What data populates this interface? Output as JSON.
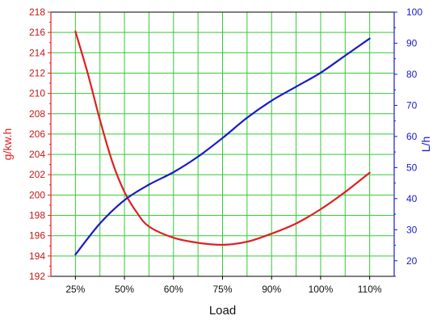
{
  "chart_data": {
    "type": "line",
    "xlabel": "Load",
    "x_tick_labels": [
      "25%",
      "50%",
      "60%",
      "75%",
      "90%",
      "100%",
      "110%"
    ],
    "x": [
      "25%",
      "50%",
      "60%",
      "75%",
      "90%",
      "100%",
      "110%"
    ],
    "left_axis": {
      "label": "g/kw.h",
      "color": "#e02020",
      "ylim": [
        192,
        218
      ],
      "ticks": [
        192,
        194,
        196,
        198,
        200,
        202,
        204,
        206,
        208,
        210,
        212,
        214,
        216,
        218
      ]
    },
    "right_axis": {
      "label": "L/h",
      "color": "#1a1acc",
      "ylim": [
        15,
        100
      ],
      "ticks": [
        20,
        30,
        40,
        50,
        60,
        70,
        80,
        90,
        100
      ]
    },
    "series": [
      {
        "axis": "left",
        "color": "#e02020",
        "points": [
          {
            "x": 0.0,
            "y": 216.1
          },
          {
            "x": 0.25,
            "y": 212.0
          },
          {
            "x": 0.5,
            "y": 207.4
          },
          {
            "x": 0.75,
            "y": 203.3
          },
          {
            "x": 1.0,
            "y": 200.3
          },
          {
            "x": 1.25,
            "y": 198.3
          },
          {
            "x": 1.5,
            "y": 196.9
          },
          {
            "x": 2.0,
            "y": 195.8
          },
          {
            "x": 2.5,
            "y": 195.3
          },
          {
            "x": 3.0,
            "y": 195.1
          },
          {
            "x": 3.5,
            "y": 195.4
          },
          {
            "x": 4.0,
            "y": 196.2
          },
          {
            "x": 4.5,
            "y": 197.2
          },
          {
            "x": 5.0,
            "y": 198.6
          },
          {
            "x": 5.5,
            "y": 200.3
          },
          {
            "x": 6.0,
            "y": 202.2
          }
        ]
      },
      {
        "axis": "right",
        "color": "#1a1acc",
        "points": [
          {
            "x": 0.0,
            "y": 22
          },
          {
            "x": 0.5,
            "y": 32
          },
          {
            "x": 1.0,
            "y": 39.5
          },
          {
            "x": 1.5,
            "y": 44.5
          },
          {
            "x": 2.0,
            "y": 48.5
          },
          {
            "x": 2.5,
            "y": 53.5
          },
          {
            "x": 3.0,
            "y": 59.5
          },
          {
            "x": 3.5,
            "y": 66
          },
          {
            "x": 4.0,
            "y": 71.5
          },
          {
            "x": 4.5,
            "y": 76
          },
          {
            "x": 5.0,
            "y": 80.5
          },
          {
            "x": 5.5,
            "y": 86
          },
          {
            "x": 6.0,
            "y": 91.5
          }
        ]
      }
    ],
    "grid": true,
    "grid_color": "#33cc33",
    "legend": "none"
  }
}
